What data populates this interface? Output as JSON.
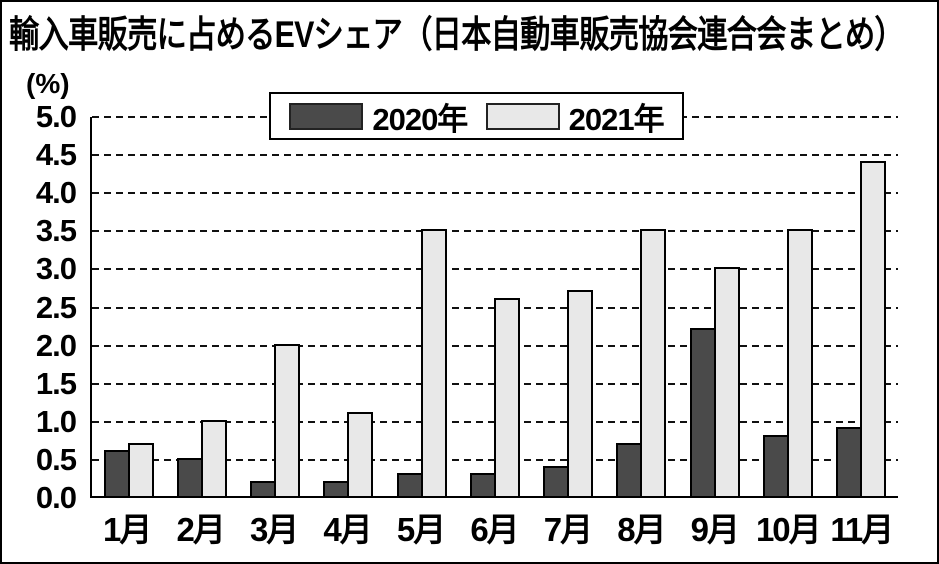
{
  "title": "輸入車販売に占めるEVシェア（日本自動車販売協会連合会まとめ）",
  "y_axis_unit": "(%)",
  "chart_data": {
    "type": "bar",
    "title": "輸入車販売に占めるEVシェア（日本自動車販売協会連合会まとめ）",
    "xlabel": "",
    "ylabel": "(%)",
    "categories": [
      "1月",
      "2月",
      "3月",
      "4月",
      "5月",
      "6月",
      "7月",
      "8月",
      "9月",
      "10月",
      "11月"
    ],
    "series": [
      {
        "name": "2020年",
        "color": "#4a4a4a",
        "values": [
          0.6,
          0.5,
          0.2,
          0.2,
          0.3,
          0.3,
          0.4,
          0.7,
          2.2,
          0.8,
          0.9
        ]
      },
      {
        "name": "2021年",
        "color": "#e8e8e8",
        "values": [
          0.7,
          1.0,
          2.0,
          1.1,
          3.5,
          2.6,
          2.7,
          3.5,
          3.0,
          3.5,
          4.4
        ]
      }
    ],
    "ylim": [
      0,
      5.0
    ],
    "ytick_step": 0.5,
    "yticks": [
      "5.0",
      "4.5",
      "4.0",
      "3.5",
      "3.0",
      "2.5",
      "2.0",
      "1.5",
      "1.0",
      "0.5",
      "0.0"
    ],
    "grid": "dashed-horizontal",
    "legend_position": "top-center"
  }
}
